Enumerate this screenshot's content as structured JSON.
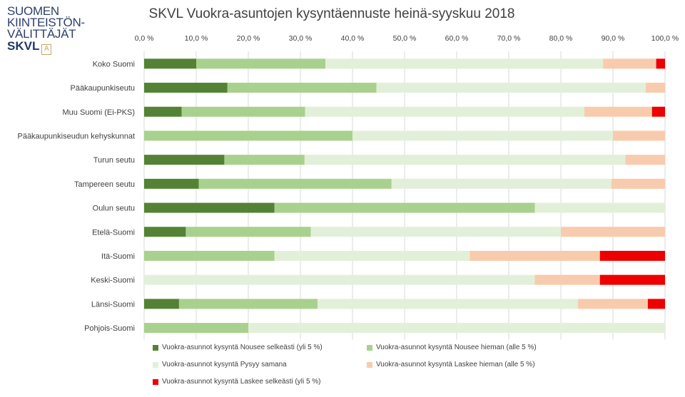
{
  "logo": {
    "line1": "SUOMEN",
    "line2": "KIINTEISTÖN-",
    "line3": "VÄLITTÄJÄT",
    "brand": "SKVL",
    "mark_letter": "A"
  },
  "chart_data": {
    "type": "bar",
    "orientation": "horizontal",
    "stacked": "percent",
    "title": "SKVL Vuokra-asuntojen kysyntäennuste heinä-syyskuu 2018",
    "xlim": [
      0,
      100
    ],
    "x_ticks": [
      "0,0 %",
      "10,0 %",
      "20,0 %",
      "30,0 %",
      "40,0 %",
      "50,0 %",
      "60,0 %",
      "70,0 %",
      "80,0 %",
      "90,0 %",
      "100,0 %"
    ],
    "x_axis_position": "top",
    "grid": true,
    "legend_position": "bottom",
    "categories": [
      "Koko Suomi",
      "Pääkaupunkiseutu",
      "Muu Suomi (Ei-PKS)",
      "Pääkaupunkiseudun kehyskunnat",
      "Turun seutu",
      "Tampereen seutu",
      "Oulun seutu",
      "Etelä-Suomi",
      "Itä-Suomi",
      "Keski-Suomi",
      "Länsi-Suomi",
      "Pohjois-Suomi"
    ],
    "series": [
      {
        "name": "Vuokra-asunnot kysyntä Nousee selkeästi (yli 5 %)",
        "color": "#548235",
        "values": [
          10.0,
          16.0,
          7.2,
          0,
          15.4,
          10.5,
          25.0,
          8.0,
          0,
          0,
          6.7,
          0
        ]
      },
      {
        "name": "Vuokra-asunnot kysyntä Nousee hieman (alle 5 %)",
        "color": "#a9d18e",
        "values": [
          24.8,
          28.6,
          23.7,
          40.0,
          15.4,
          37.0,
          50.0,
          24.0,
          25.0,
          0,
          26.6,
          20.0
        ]
      },
      {
        "name": "Vuokra-asunnot kysyntä Pysyy samana",
        "color": "#e2f0d9",
        "values": [
          53.3,
          51.7,
          53.6,
          50.0,
          61.6,
          42.2,
          25.0,
          48.0,
          37.5,
          75.0,
          50.0,
          80.0
        ]
      },
      {
        "name": "Vuokra-asunnot kysyntä Laskee hieman (alle 5 %)",
        "color": "#f8cbad",
        "values": [
          10.2,
          3.7,
          13.0,
          10.0,
          7.6,
          10.3,
          0,
          20.0,
          25.0,
          12.5,
          13.4,
          0
        ]
      },
      {
        "name": "Vuokra-asunnot kysyntä Laskee selkeästi (yli 5 %)",
        "color": "#ee0000",
        "values": [
          1.7,
          0,
          2.5,
          0,
          0,
          0,
          0,
          0,
          12.5,
          12.5,
          3.3,
          0
        ]
      }
    ]
  }
}
